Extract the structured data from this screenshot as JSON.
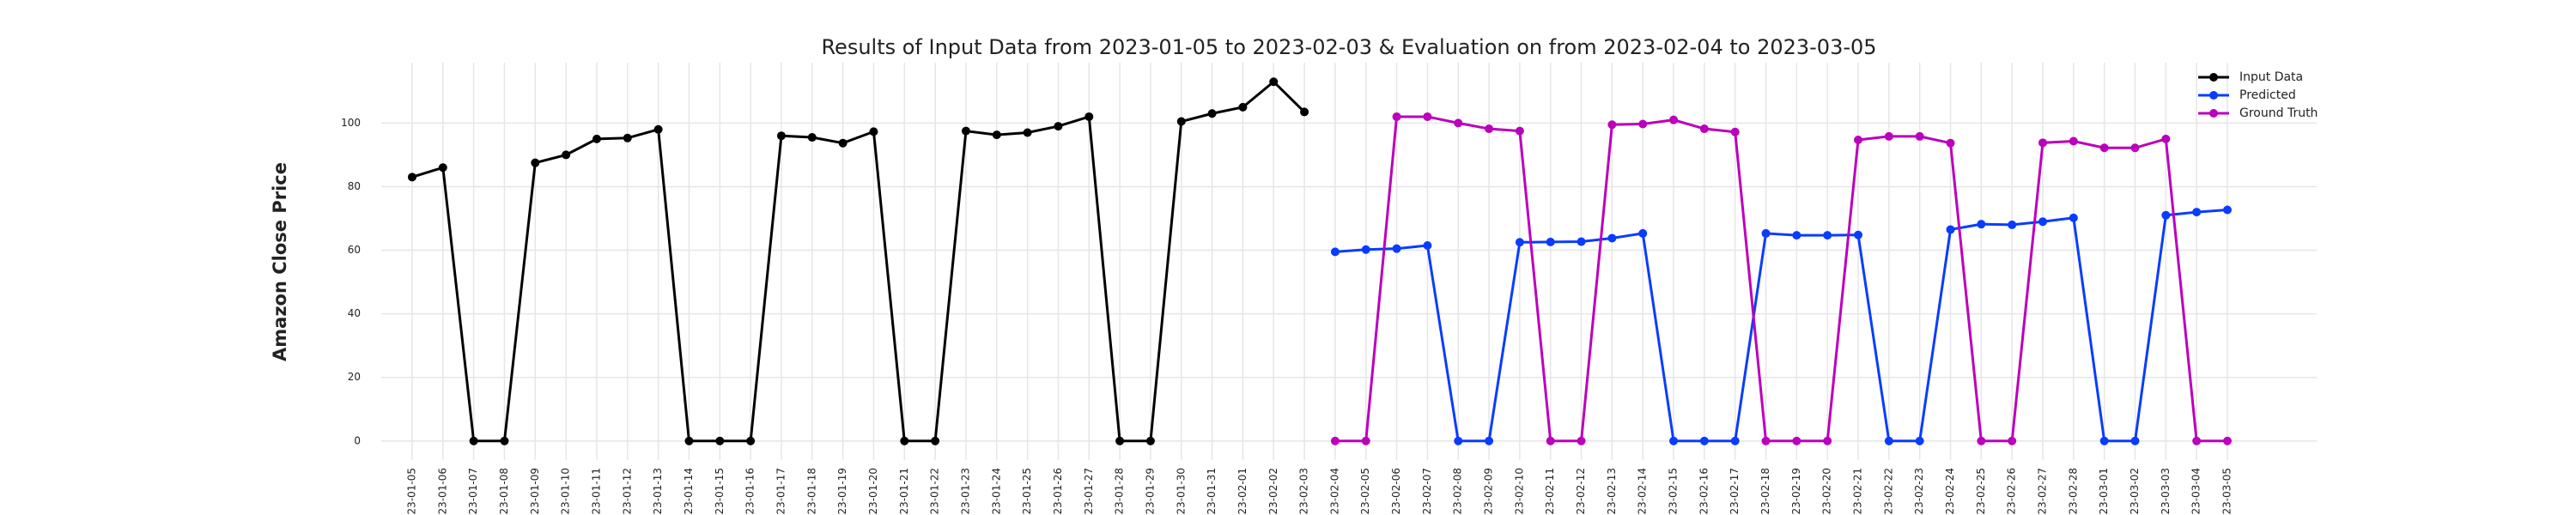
{
  "chart_data": {
    "type": "line",
    "title": "Results of Input Data from 2023-01-05 to 2023-02-03 & Evaluation on from 2023-02-04 to 2023-03-05",
    "y_label": "Amazon Close Price",
    "categories": [
      "2023-01-05",
      "2023-01-06",
      "2023-01-07",
      "2023-01-08",
      "2023-01-09",
      "2023-01-10",
      "2023-01-11",
      "2023-01-12",
      "2023-01-13",
      "2023-01-14",
      "2023-01-15",
      "2023-01-16",
      "2023-01-17",
      "2023-01-18",
      "2023-01-19",
      "2023-01-20",
      "2023-01-21",
      "2023-01-22",
      "2023-01-23",
      "2023-01-24",
      "2023-01-25",
      "2023-01-26",
      "2023-01-27",
      "2023-01-28",
      "2023-01-29",
      "2023-01-30",
      "2023-01-31",
      "2023-02-01",
      "2023-02-02",
      "2023-02-03",
      "2023-02-04",
      "2023-02-05",
      "2023-02-06",
      "2023-02-07",
      "2023-02-08",
      "2023-02-09",
      "2023-02-10",
      "2023-02-11",
      "2023-02-12",
      "2023-02-13",
      "2023-02-14",
      "2023-02-15",
      "2023-02-16",
      "2023-02-17",
      "2023-02-18",
      "2023-02-19",
      "2023-02-20",
      "2023-02-21",
      "2023-02-22",
      "2023-02-23",
      "2023-02-24",
      "2023-02-25",
      "2023-02-26",
      "2023-02-27",
      "2023-02-28",
      "2023-03-01",
      "2023-03-02",
      "2023-03-03",
      "2023-03-04",
      "2023-03-05"
    ],
    "series": [
      {
        "name": "Input Data",
        "color": "#000000",
        "values": [
          83,
          86,
          0,
          0,
          87.5,
          90,
          95,
          95.3,
          98,
          0,
          0,
          0,
          96,
          95.5,
          93.7,
          97.3,
          0,
          0,
          97.5,
          96.3,
          97,
          99,
          102,
          0,
          0,
          100.5,
          103,
          105,
          113,
          103.5,
          null,
          null,
          null,
          null,
          null,
          null,
          null,
          null,
          null,
          null,
          null,
          null,
          null,
          null,
          null,
          null,
          null,
          null,
          null,
          null,
          null,
          null,
          null,
          null,
          null,
          null,
          null,
          null,
          null,
          null
        ]
      },
      {
        "name": "Predicted",
        "color": "#0a3cff",
        "values": [
          null,
          null,
          null,
          null,
          null,
          null,
          null,
          null,
          null,
          null,
          null,
          null,
          null,
          null,
          null,
          null,
          null,
          null,
          null,
          null,
          null,
          null,
          null,
          null,
          null,
          null,
          null,
          null,
          null,
          null,
          59.5,
          60.2,
          60.5,
          61.5,
          0,
          0,
          62.5,
          62.6,
          62.7,
          63.8,
          65.3,
          0,
          0,
          0,
          65.3,
          64.7,
          64.7,
          64.8,
          0,
          0,
          66.5,
          68.2,
          68,
          69,
          70.2,
          0,
          0,
          71,
          72,
          72.7
        ]
      },
      {
        "name": "Ground Truth",
        "color": "#bb00bb",
        "values": [
          null,
          null,
          null,
          null,
          null,
          null,
          null,
          null,
          null,
          null,
          null,
          null,
          null,
          null,
          null,
          null,
          null,
          null,
          null,
          null,
          null,
          null,
          null,
          null,
          null,
          null,
          null,
          null,
          null,
          null,
          0,
          0,
          102,
          102,
          100,
          98.2,
          97.5,
          0,
          0,
          99.5,
          99.7,
          101,
          98.2,
          97.2,
          0,
          0,
          0,
          94.7,
          95.8,
          95.8,
          93.7,
          0,
          0,
          93.8,
          94.3,
          92.2,
          92.2,
          95,
          0,
          0
        ]
      }
    ],
    "ylim": [
      -6,
      119
    ],
    "yticks": [
      0,
      20,
      40,
      60,
      80,
      100
    ],
    "grid": true,
    "legend": "upper right"
  }
}
